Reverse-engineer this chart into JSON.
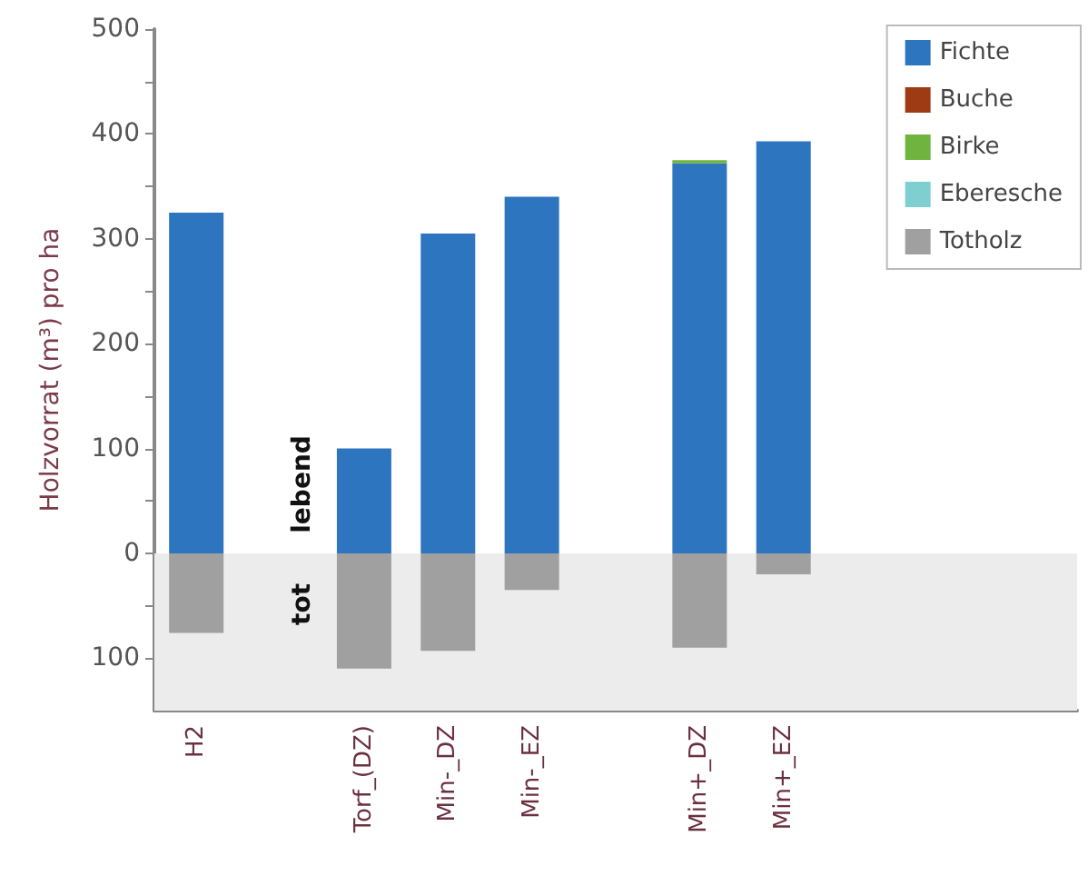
{
  "chart_data": {
    "type": "bar",
    "stacked": true,
    "ylabel": "Holzvorrat (m³) pro ha",
    "categories": [
      "H2",
      null,
      "Torf_(DZ)",
      "Min-_DZ",
      "Min-_EZ",
      null,
      "Min+_DZ",
      "Min+_EZ",
      null,
      null,
      null
    ],
    "series": [
      {
        "name": "Fichte",
        "color": "#2e75c0",
        "values": [
          325,
          null,
          100,
          305,
          340,
          null,
          372,
          393,
          null,
          null,
          null
        ]
      },
      {
        "name": "Buche",
        "color": "#9e3a14",
        "values": [
          null,
          null,
          null,
          null,
          null,
          null,
          null,
          null,
          null,
          null,
          null
        ]
      },
      {
        "name": "Birke",
        "color": "#6fb43f",
        "values": [
          null,
          null,
          null,
          null,
          null,
          null,
          3,
          null,
          null,
          null,
          null
        ]
      },
      {
        "name": "Eberesche",
        "color": "#7fcfd0",
        "values": [
          null,
          null,
          null,
          null,
          null,
          null,
          null,
          null,
          null,
          null,
          null
        ]
      },
      {
        "name": "Totholz",
        "color": "#a0a0a0",
        "values": [
          -76,
          null,
          -110,
          -93,
          -35,
          null,
          -90,
          -20,
          null,
          null,
          null
        ]
      }
    ],
    "ylim": [
      -150,
      500
    ],
    "yticks": [
      {
        "value": -100,
        "label": "100"
      },
      {
        "value": -50,
        "label": null
      },
      0,
      {
        "value": 50,
        "label": null
      },
      100,
      {
        "value": 150,
        "label": null
      },
      200,
      {
        "value": 250,
        "label": null
      },
      300,
      {
        "value": 350,
        "label": null
      },
      400,
      {
        "value": 450,
        "label": null
      },
      500
    ],
    "bands": [
      {
        "axis": "y",
        "from": -150,
        "to": 0,
        "color": "#ececec"
      }
    ],
    "annotations": [
      "lebend",
      "tot"
    ],
    "grid": false,
    "legend": "top right"
  }
}
